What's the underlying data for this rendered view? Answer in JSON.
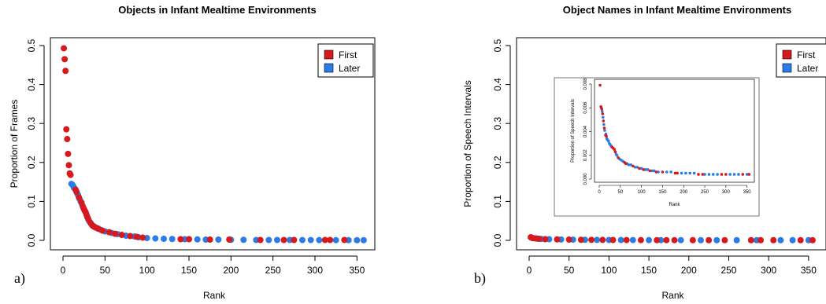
{
  "colors": {
    "first": "#d7191c",
    "later": "#2b7ce9"
  },
  "chart_data": [
    {
      "type": "scatter",
      "panel_label": "a)",
      "title": "Objects in Infant Mealtime Environments",
      "xlabel": "Rank",
      "ylabel": "Proportion of Frames",
      "xlim": [
        0,
        360
      ],
      "ylim": [
        0,
        0.5
      ],
      "xticks": [
        "0",
        "50",
        "100",
        "150",
        "200",
        "250",
        "300",
        "350"
      ],
      "yticks": [
        "0.0",
        "0.1",
        "0.2",
        "0.3",
        "0.4",
        "0.5"
      ],
      "legend": {
        "position": "top-right",
        "entries": [
          "First",
          "Later"
        ]
      },
      "series": [
        {
          "name": "First",
          "color": "#d7191c",
          "points": [
            [
              1,
              0.493
            ],
            [
              2,
              0.465
            ],
            [
              3,
              0.435
            ],
            [
              4,
              0.285
            ],
            [
              5,
              0.26
            ],
            [
              6,
              0.222
            ],
            [
              7,
              0.193
            ],
            [
              8,
              0.172
            ],
            [
              9,
              0.168
            ],
            [
              15,
              0.13
            ],
            [
              16,
              0.125
            ],
            [
              19,
              0.11
            ],
            [
              22,
              0.097
            ],
            [
              24,
              0.085
            ],
            [
              25,
              0.08
            ],
            [
              26,
              0.076
            ],
            [
              27,
              0.072
            ],
            [
              28,
              0.066
            ],
            [
              29,
              0.06
            ],
            [
              30,
              0.055
            ],
            [
              33,
              0.044
            ],
            [
              35,
              0.038
            ],
            [
              38,
              0.034
            ],
            [
              42,
              0.03
            ],
            [
              47,
              0.025
            ],
            [
              55,
              0.021
            ],
            [
              62,
              0.017
            ],
            [
              70,
              0.014
            ],
            [
              80,
              0.011
            ],
            [
              88,
              0.009
            ],
            [
              95,
              0.007
            ],
            [
              140,
              0.003
            ],
            [
              150,
              0.003
            ],
            [
              175,
              0.002
            ],
            [
              198,
              0.002
            ],
            [
              235,
              0.001
            ],
            [
              263,
              0.001
            ],
            [
              275,
              0.001
            ],
            [
              312,
              0.001
            ],
            [
              318,
              0.001
            ],
            [
              335,
              0.001
            ]
          ]
        },
        {
          "name": "Later",
          "color": "#2b7ce9",
          "points": [
            [
              10,
              0.145
            ],
            [
              11,
              0.143
            ],
            [
              12,
              0.14
            ],
            [
              13,
              0.135
            ],
            [
              14,
              0.133
            ],
            [
              17,
              0.12
            ],
            [
              18,
              0.116
            ],
            [
              20,
              0.105
            ],
            [
              21,
              0.1
            ],
            [
              23,
              0.09
            ],
            [
              31,
              0.05
            ],
            [
              32,
              0.047
            ],
            [
              34,
              0.041
            ],
            [
              36,
              0.037
            ],
            [
              37,
              0.035
            ],
            [
              40,
              0.032
            ],
            [
              45,
              0.027
            ],
            [
              50,
              0.023
            ],
            [
              58,
              0.019
            ],
            [
              65,
              0.016
            ],
            [
              75,
              0.012
            ],
            [
              85,
              0.01
            ],
            [
              90,
              0.008
            ],
            [
              100,
              0.006
            ],
            [
              110,
              0.005
            ],
            [
              120,
              0.004
            ],
            [
              130,
              0.0035
            ],
            [
              145,
              0.003
            ],
            [
              160,
              0.0025
            ],
            [
              170,
              0.002
            ],
            [
              185,
              0.002
            ],
            [
              200,
              0.0015
            ],
            [
              215,
              0.0015
            ],
            [
              230,
              0.001
            ],
            [
              245,
              0.001
            ],
            [
              255,
              0.001
            ],
            [
              270,
              0.001
            ],
            [
              285,
              0.0008
            ],
            [
              295,
              0.0008
            ],
            [
              305,
              0.0007
            ],
            [
              325,
              0.0006
            ],
            [
              340,
              0.0005
            ],
            [
              350,
              0.0005
            ],
            [
              358,
              0.0005
            ]
          ]
        }
      ]
    },
    {
      "type": "scatter",
      "panel_label": "b)",
      "title": "Object Names in Infant Mealtime Environments",
      "xlabel": "Rank",
      "ylabel": "Proportion of Speech Intervals",
      "xlim": [
        0,
        360
      ],
      "ylim": [
        0,
        0.5
      ],
      "xticks": [
        "0",
        "50",
        "100",
        "150",
        "200",
        "250",
        "300",
        "350"
      ],
      "yticks": [
        "0.0",
        "0.1",
        "0.2",
        "0.3",
        "0.4",
        "0.5"
      ],
      "legend": {
        "position": "top-right",
        "entries": [
          "First",
          "Later"
        ]
      },
      "series": [
        {
          "name": "First",
          "color": "#d7191c",
          "points": [
            [
              2,
              0.008
            ],
            [
              4,
              0.006
            ],
            [
              8,
              0.005
            ],
            [
              12,
              0.004
            ],
            [
              20,
              0.003
            ],
            [
              35,
              0.0025
            ],
            [
              50,
              0.002
            ],
            [
              65,
              0.0015
            ],
            [
              78,
              0.0013
            ],
            [
              92,
              0.0012
            ],
            [
              105,
              0.001
            ],
            [
              122,
              0.0008
            ],
            [
              140,
              0.0007
            ],
            [
              160,
              0.0006
            ],
            [
              172,
              0.0006
            ],
            [
              182,
              0.0006
            ],
            [
              205,
              0.0005
            ],
            [
              225,
              0.0005
            ],
            [
              245,
              0.0005
            ],
            [
              278,
              0.0005
            ],
            [
              290,
              0.0005
            ],
            [
              306,
              0.0005
            ],
            [
              340,
              0.0005
            ],
            [
              355,
              0.0005
            ]
          ]
        },
        {
          "name": "Later",
          "color": "#2b7ce9",
          "points": [
            [
              5,
              0.0058
            ],
            [
              10,
              0.0045
            ],
            [
              15,
              0.0038
            ],
            [
              25,
              0.003
            ],
            [
              40,
              0.0023
            ],
            [
              55,
              0.0018
            ],
            [
              70,
              0.0014
            ],
            [
              85,
              0.0012
            ],
            [
              100,
              0.001
            ],
            [
              115,
              0.0009
            ],
            [
              130,
              0.0008
            ],
            [
              150,
              0.0007
            ],
            [
              165,
              0.0006
            ],
            [
              190,
              0.0006
            ],
            [
              215,
              0.0005
            ],
            [
              235,
              0.0005
            ],
            [
              260,
              0.0005
            ],
            [
              285,
              0.0005
            ],
            [
              315,
              0.0005
            ],
            [
              330,
              0.0005
            ],
            [
              350,
              0.0005
            ]
          ]
        }
      ],
      "inset": {
        "ylabel": "Proportion of Speech Intervals",
        "xlabel": "Rank",
        "xlim": [
          0,
          360
        ],
        "ylim": [
          0,
          0.008
        ],
        "xticks": [
          "0",
          "50",
          "100",
          "150",
          "200",
          "250",
          "300",
          "350"
        ],
        "yticks": [
          "0.000",
          "0.002",
          "0.004",
          "0.006",
          "0.008"
        ],
        "series": [
          {
            "name": "First",
            "color": "#d7191c",
            "points": [
              [
                2,
                0.0079
              ],
              [
                4,
                0.0061
              ],
              [
                6,
                0.0059
              ],
              [
                8,
                0.0055
              ],
              [
                10,
                0.0049
              ],
              [
                12,
                0.0043
              ],
              [
                15,
                0.0037
              ],
              [
                17,
                0.0036
              ],
              [
                30,
                0.0027
              ],
              [
                33,
                0.0026
              ],
              [
                36,
                0.0025
              ],
              [
                38,
                0.0023
              ],
              [
                45,
                0.0018
              ],
              [
                60,
                0.0014
              ],
              [
                63,
                0.0013
              ],
              [
                80,
                0.0011
              ],
              [
                95,
                0.0009
              ],
              [
                105,
                0.0008
              ],
              [
                120,
                0.0007
              ],
              [
                135,
                0.0006
              ],
              [
                150,
                0.0006
              ],
              [
                180,
                0.0005
              ],
              [
                185,
                0.0005
              ],
              [
                235,
                0.0004
              ],
              [
                245,
                0.0004
              ],
              [
                290,
                0.0004
              ],
              [
                300,
                0.0004
              ],
              [
                340,
                0.0004
              ],
              [
                355,
                0.0004
              ]
            ]
          },
          {
            "name": "Later",
            "color": "#2b7ce9",
            "points": [
              [
                5,
                0.006
              ],
              [
                7,
                0.0057
              ],
              [
                9,
                0.0052
              ],
              [
                11,
                0.0046
              ],
              [
                13,
                0.0041
              ],
              [
                16,
                0.0038
              ],
              [
                18,
                0.0034
              ],
              [
                20,
                0.0033
              ],
              [
                22,
                0.0032
              ],
              [
                24,
                0.003
              ],
              [
                26,
                0.0029
              ],
              [
                28,
                0.0028
              ],
              [
                40,
                0.0021
              ],
              [
                42,
                0.002
              ],
              [
                48,
                0.0017
              ],
              [
                52,
                0.0016
              ],
              [
                56,
                0.0015
              ],
              [
                66,
                0.0013
              ],
              [
                70,
                0.0012
              ],
              [
                75,
                0.0012
              ],
              [
                85,
                0.001
              ],
              [
                90,
                0.001
              ],
              [
                100,
                0.0009
              ],
              [
                110,
                0.0008
              ],
              [
                115,
                0.0008
              ],
              [
                125,
                0.0007
              ],
              [
                130,
                0.0007
              ],
              [
                140,
                0.0006
              ],
              [
                160,
                0.0006
              ],
              [
                170,
                0.0006
              ],
              [
                195,
                0.0005
              ],
              [
                205,
                0.0005
              ],
              [
                215,
                0.0005
              ],
              [
                225,
                0.0005
              ],
              [
                250,
                0.0004
              ],
              [
                260,
                0.0004
              ],
              [
                270,
                0.0004
              ],
              [
                280,
                0.0004
              ],
              [
                310,
                0.0004
              ],
              [
                320,
                0.0004
              ],
              [
                330,
                0.0004
              ],
              [
                350,
                0.0004
              ]
            ]
          }
        ]
      }
    }
  ]
}
